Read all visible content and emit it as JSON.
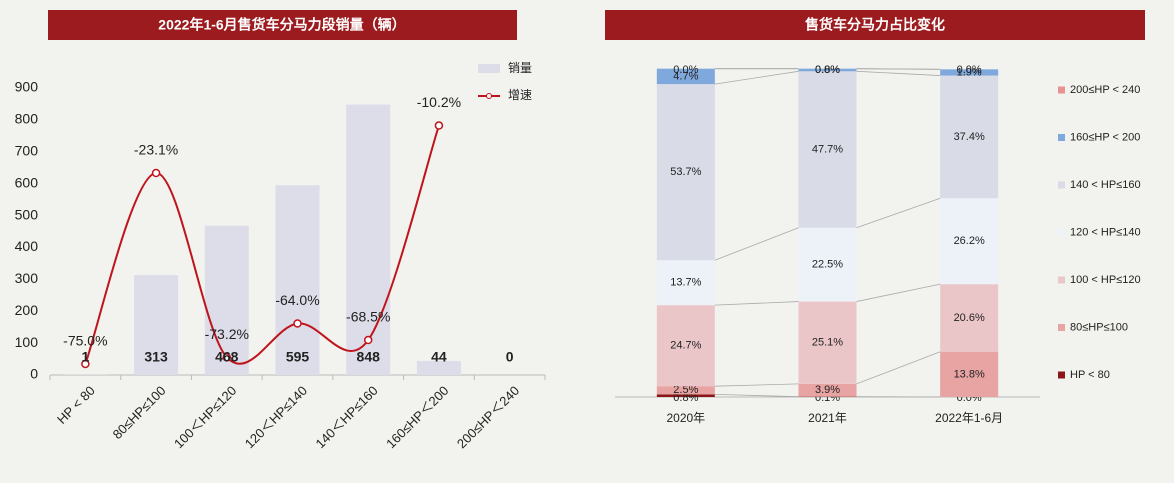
{
  "chart_data": [
    {
      "type": "bar",
      "title": "2022年1-6月售货车分马力段销量（辆）",
      "categories": [
        "HP < 80",
        "80≤HP≤100",
        "100＜HP≤120",
        "120＜HP≤140",
        "140＜HP≤160",
        "160≤HP＜200",
        "200≤HP＜240"
      ],
      "series": [
        {
          "name": "销量",
          "type": "bar",
          "color": "#dcdde8",
          "values": [
            1,
            313,
            468,
            595,
            848,
            44,
            0
          ]
        },
        {
          "name": "增速",
          "type": "line",
          "axis": "y2",
          "color": "#c0141c",
          "values": [
            -75.0,
            -23.1,
            -73.2,
            -64.0,
            -68.5,
            -10.2,
            null
          ],
          "value_labels": [
            "-75.0%",
            "-23.1%",
            "-73.2%",
            "-64.0%",
            "-68.5%",
            "-10.2%",
            null
          ]
        }
      ],
      "ylim": [
        0,
        900
      ],
      "yticks": [
        0,
        100,
        200,
        300,
        400,
        500,
        600,
        700,
        800,
        900
      ],
      "y2lim": [
        -78,
        0
      ],
      "legend": "top-right"
    },
    {
      "type": "stacked_bar",
      "title": "售货车分马力占比变化",
      "categories": [
        "2020年",
        "2021年",
        "2022年1-6月"
      ],
      "ylim": [
        0,
        100
      ],
      "legend": "right",
      "series": [
        {
          "name": "HP < 80",
          "color": "#8b1518",
          "values": [
            0.8,
            0.1,
            0.0
          ],
          "value_labels": [
            "0.8%",
            "0.1%",
            "0.0%"
          ]
        },
        {
          "name": "80≤HP≤100",
          "color": "#e8a3a3",
          "values": [
            2.5,
            3.9,
            13.8
          ],
          "value_labels": [
            "2.5%",
            "3.9%",
            "13.8%"
          ]
        },
        {
          "name": "100 < HP≤120",
          "color": "#ebc6c9",
          "values": [
            24.7,
            25.1,
            20.6
          ],
          "value_labels": [
            "24.7%",
            "25.1%",
            "20.6%"
          ]
        },
        {
          "name": "120 < HP≤140",
          "color": "#edf2f9",
          "values": [
            13.7,
            22.5,
            26.2
          ],
          "value_labels": [
            "13.7%",
            "22.5%",
            "26.2%"
          ]
        },
        {
          "name": "140 < HP≤160",
          "color": "#d9dbe6",
          "values": [
            53.7,
            47.7,
            37.4
          ],
          "value_labels": [
            "53.7%",
            "47.7%",
            "37.4%"
          ]
        },
        {
          "name": "160≤HP < 200",
          "color": "#7fa8dc",
          "values": [
            4.7,
            0.8,
            1.9
          ],
          "value_labels": [
            "4.7%",
            "0.8%",
            "1.9%"
          ]
        },
        {
          "name": "200≤HP < 240",
          "color": "#e89393",
          "values": [
            0.0,
            0.0,
            0.0
          ],
          "value_labels": [
            "0.0%",
            "0.0%",
            "0.0%"
          ]
        }
      ]
    }
  ]
}
